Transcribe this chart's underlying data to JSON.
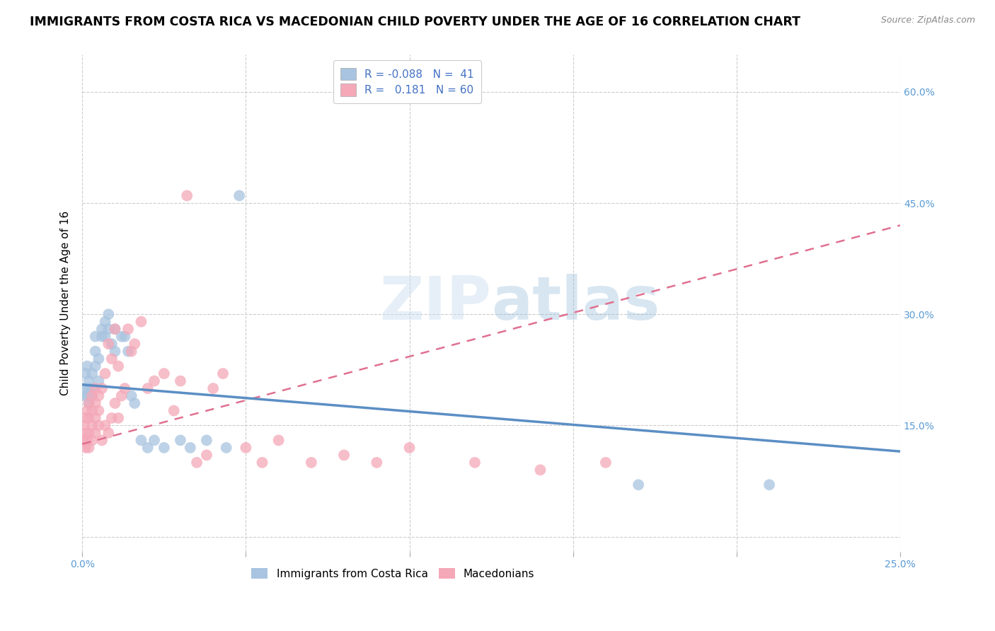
{
  "title": "IMMIGRANTS FROM COSTA RICA VS MACEDONIAN CHILD POVERTY UNDER THE AGE OF 16 CORRELATION CHART",
  "source": "Source: ZipAtlas.com",
  "ylabel": "Child Poverty Under the Age of 16",
  "watermark": "ZIPatlas",
  "xlim": [
    0.0,
    0.25
  ],
  "ylim": [
    -0.02,
    0.65
  ],
  "xticks": [
    0.0,
    0.05,
    0.1,
    0.15,
    0.2,
    0.25
  ],
  "xticklabels": [
    "0.0%",
    "",
    "",
    "",
    "",
    "25.0%"
  ],
  "yticks_right": [
    0.0,
    0.15,
    0.3,
    0.45,
    0.6
  ],
  "yticklabels_right": [
    "",
    "15.0%",
    "30.0%",
    "45.0%",
    "60.0%"
  ],
  "legend_labels": [
    "Immigrants from Costa Rica",
    "Macedonians"
  ],
  "legend_R": [
    "-0.088",
    "0.181"
  ],
  "legend_N": [
    "41",
    "60"
  ],
  "color_blue": "#a8c4e0",
  "color_pink": "#f4a8b8",
  "color_trend_blue": "#5b8ec4",
  "color_trend_pink": "#e07090",
  "blue_scatter_x": [
    0.0005,
    0.001,
    0.001,
    0.0015,
    0.0015,
    0.002,
    0.002,
    0.002,
    0.003,
    0.003,
    0.003,
    0.004,
    0.004,
    0.004,
    0.005,
    0.005,
    0.006,
    0.006,
    0.007,
    0.007,
    0.008,
    0.008,
    0.009,
    0.01,
    0.01,
    0.012,
    0.013,
    0.014,
    0.015,
    0.016,
    0.018,
    0.02,
    0.022,
    0.025,
    0.03,
    0.033,
    0.038,
    0.044,
    0.048,
    0.17,
    0.21
  ],
  "blue_scatter_y": [
    0.2,
    0.19,
    0.22,
    0.19,
    0.23,
    0.2,
    0.21,
    0.18,
    0.22,
    0.2,
    0.19,
    0.27,
    0.25,
    0.23,
    0.24,
    0.21,
    0.28,
    0.27,
    0.29,
    0.27,
    0.28,
    0.3,
    0.26,
    0.28,
    0.25,
    0.27,
    0.27,
    0.25,
    0.19,
    0.18,
    0.13,
    0.12,
    0.13,
    0.12,
    0.13,
    0.12,
    0.13,
    0.12,
    0.46,
    0.07,
    0.07
  ],
  "pink_scatter_x": [
    0.0003,
    0.0005,
    0.001,
    0.001,
    0.001,
    0.0015,
    0.0015,
    0.002,
    0.002,
    0.002,
    0.002,
    0.003,
    0.003,
    0.003,
    0.003,
    0.004,
    0.004,
    0.004,
    0.004,
    0.005,
    0.005,
    0.005,
    0.006,
    0.006,
    0.007,
    0.007,
    0.008,
    0.008,
    0.009,
    0.009,
    0.01,
    0.01,
    0.011,
    0.011,
    0.012,
    0.013,
    0.014,
    0.015,
    0.016,
    0.018,
    0.02,
    0.022,
    0.025,
    0.028,
    0.03,
    0.032,
    0.035,
    0.038,
    0.04,
    0.043,
    0.05,
    0.055,
    0.06,
    0.07,
    0.08,
    0.09,
    0.1,
    0.12,
    0.14,
    0.16
  ],
  "pink_scatter_y": [
    0.13,
    0.15,
    0.14,
    0.12,
    0.16,
    0.13,
    0.17,
    0.14,
    0.16,
    0.12,
    0.18,
    0.13,
    0.15,
    0.17,
    0.19,
    0.14,
    0.16,
    0.18,
    0.2,
    0.15,
    0.17,
    0.19,
    0.13,
    0.2,
    0.15,
    0.22,
    0.14,
    0.26,
    0.16,
    0.24,
    0.18,
    0.28,
    0.16,
    0.23,
    0.19,
    0.2,
    0.28,
    0.25,
    0.26,
    0.29,
    0.2,
    0.21,
    0.22,
    0.17,
    0.21,
    0.46,
    0.1,
    0.11,
    0.2,
    0.22,
    0.12,
    0.1,
    0.13,
    0.1,
    0.11,
    0.1,
    0.12,
    0.1,
    0.09,
    0.1
  ],
  "blue_trend_x0": 0.0,
  "blue_trend_x1": 0.25,
  "blue_trend_y0": 0.205,
  "blue_trend_y1": 0.115,
  "pink_trend_x0": 0.0,
  "pink_trend_x1": 0.25,
  "pink_trend_y0": 0.125,
  "pink_trend_y1": 0.42,
  "grid_color": "#cccccc",
  "title_fontsize": 12.5,
  "axis_label_fontsize": 11,
  "tick_fontsize": 10,
  "legend_fontsize": 11,
  "source_fontsize": 9
}
